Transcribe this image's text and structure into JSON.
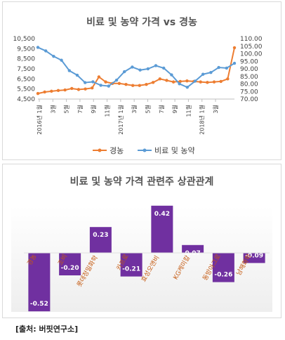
{
  "chart_data": [
    {
      "type": "line",
      "title": "비료 및 농약 가격 vs 경농",
      "x_tick_labels": [
        "2016년 1월",
        "3월",
        "5월",
        "7월",
        "9월",
        "11월",
        "2017년 1월",
        "3월",
        "5월",
        "7월",
        "9월",
        "11월",
        "2018년 1월",
        "3월"
      ],
      "y_left": {
        "ticks": [
          "4,500",
          "5,500",
          "6,500",
          "7,500",
          "8,500",
          "9,500",
          "10,500"
        ],
        "range": [
          4500,
          10500
        ]
      },
      "y_right": {
        "ticks": [
          "70.00",
          "75.00",
          "80.00",
          "85.00",
          "90.00",
          "95.00",
          "100.00",
          "105.00",
          "110.00"
        ],
        "range": [
          70,
          110
        ]
      },
      "legend_position": "bottom",
      "colors": {
        "경농": "#ED7D31",
        "비료 및 농약": "#5B9BD5"
      },
      "series": [
        {
          "name": "경농",
          "axis": "left",
          "values": [
            5050,
            5200,
            5280,
            5350,
            5400,
            5550,
            5450,
            5500,
            5600,
            6700,
            6200,
            6050,
            6050,
            5950,
            5850,
            5850,
            5950,
            6150,
            6500,
            6350,
            6200,
            6250,
            6300,
            6250,
            6200,
            6150,
            6200,
            6250,
            6500,
            9600
          ]
        },
        {
          "name": "비료 및 농약",
          "axis": "right",
          "values": [
            104.2,
            101.9,
            98.3,
            95.7,
            88.8,
            85.8,
            80.9,
            81.4,
            79.1,
            78.6,
            82.5,
            88.1,
            91.2,
            89.2,
            90.0,
            92.1,
            90.5,
            86.0,
            80.1,
            77.8,
            81.9,
            86.4,
            87.6,
            90.9,
            90.5,
            93.7
          ]
        }
      ]
    },
    {
      "type": "bar",
      "title": "비료 및 농약 가격 관련주 상관관계",
      "categories": [
        "경농",
        "조비",
        "롯데정밀화학",
        "카프로",
        "효성오앤비",
        "KG케미칼",
        "동방아그로",
        "남해화학"
      ],
      "values": [
        -0.52,
        -0.2,
        0.23,
        -0.21,
        0.42,
        0.07,
        -0.26,
        -0.09
      ],
      "value_labels": [
        "-0.52",
        "-0.20",
        "0.23",
        "-0.21",
        "0.42",
        "0.07",
        "-0.26",
        "-0.09"
      ],
      "bar_color": "#7030A0",
      "ylim": [
        -0.6,
        0.45
      ]
    }
  ],
  "source": "[출처: 버핏연구소]"
}
